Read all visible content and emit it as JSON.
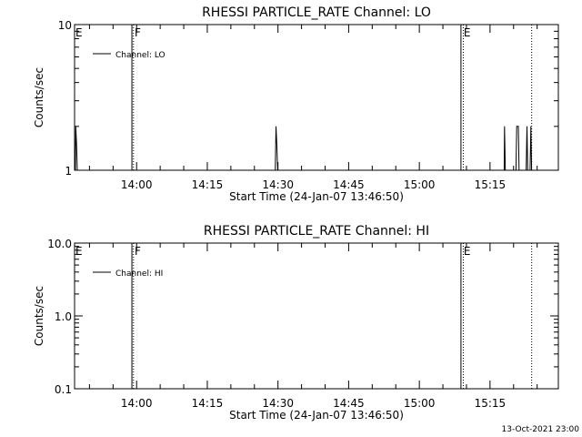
{
  "timestamp": "13-Oct-2021 23:00",
  "chart_data": [
    {
      "type": "line",
      "title": "RHESSI PARTICLE_RATE Channel: LO",
      "xlabel": "Start Time (24-Jan-07 13:46:50)",
      "ylabel": "Counts/sec",
      "y_scale": "log",
      "ylim": [
        1,
        10
      ],
      "y_ticks": [
        {
          "value": 1,
          "label": "1"
        },
        {
          "value": 10,
          "label": "10"
        }
      ],
      "y_minor_ticks": [
        2,
        3,
        4,
        5,
        6,
        7,
        8,
        9
      ],
      "x_range": [
        "13:46:50",
        "15:29:30"
      ],
      "x_ticks": [
        "14:00",
        "14:15",
        "14:30",
        "14:45",
        "15:00",
        "15:15"
      ],
      "legend": {
        "position": "top-left",
        "entries": [
          "Channel: LO"
        ]
      },
      "event_lines": [
        {
          "time": "13:59:00",
          "label": "F",
          "style": "solid"
        },
        {
          "time": "13:59:20",
          "label": "",
          "style": "dotted"
        },
        {
          "time": "15:08:50",
          "label": "E",
          "style": "solid"
        },
        {
          "time": "15:09:20",
          "label": "",
          "style": "dotted"
        },
        {
          "time": "15:23:50",
          "label": "",
          "style": "dotted"
        }
      ],
      "edge_labels": [
        {
          "time": "13:46:50",
          "label": "E"
        }
      ],
      "series": [
        {
          "name": "Channel: LO",
          "points": [
            [
              "13:47:00",
              1
            ],
            [
              "13:47:05",
              2
            ],
            [
              "13:47:15",
              1.5
            ],
            [
              "13:47:25",
              1
            ],
            [
              "14:29:25",
              1
            ],
            [
              "14:29:35",
              2
            ],
            [
              "14:29:45",
              1.5
            ],
            [
              "14:29:55",
              1
            ],
            [
              "15:18:00",
              1
            ],
            [
              "15:18:05",
              2
            ],
            [
              "15:18:15",
              1
            ],
            [
              "15:20:30",
              1
            ],
            [
              "15:20:40",
              2
            ],
            [
              "15:21:00",
              2
            ],
            [
              "15:21:10",
              1
            ],
            [
              "15:22:40",
              1
            ],
            [
              "15:22:50",
              2
            ],
            [
              "15:23:00",
              1
            ],
            [
              "15:23:30",
              1
            ],
            [
              "15:23:40",
              2
            ],
            [
              "15:23:50",
              1
            ]
          ]
        }
      ]
    },
    {
      "type": "line",
      "title": "RHESSI PARTICLE_RATE Channel: HI",
      "xlabel": "Start Time (24-Jan-07 13:46:50)",
      "ylabel": "Counts/sec",
      "y_scale": "log",
      "ylim": [
        0.1,
        10
      ],
      "y_ticks": [
        {
          "value": 0.1,
          "label": "0.1"
        },
        {
          "value": 1,
          "label": "1.0"
        },
        {
          "value": 10,
          "label": "10.0"
        }
      ],
      "y_minor_ticks": [
        0.2,
        0.3,
        0.4,
        0.5,
        0.6,
        0.7,
        0.8,
        0.9,
        2,
        3,
        4,
        5,
        6,
        7,
        8,
        9
      ],
      "x_range": [
        "13:46:50",
        "15:29:30"
      ],
      "x_ticks": [
        "14:00",
        "14:15",
        "14:30",
        "14:45",
        "15:00",
        "15:15"
      ],
      "legend": {
        "position": "top-left",
        "entries": [
          "Channel: HI"
        ]
      },
      "event_lines": [
        {
          "time": "13:59:00",
          "label": "F",
          "style": "solid"
        },
        {
          "time": "13:59:20",
          "label": "",
          "style": "dotted"
        },
        {
          "time": "15:08:50",
          "label": "E",
          "style": "solid"
        },
        {
          "time": "15:09:20",
          "label": "",
          "style": "dotted"
        },
        {
          "time": "15:23:50",
          "label": "",
          "style": "dotted"
        }
      ],
      "edge_labels": [
        {
          "time": "13:46:50",
          "label": "E"
        }
      ],
      "series": [
        {
          "name": "Channel: HI",
          "points": []
        }
      ]
    }
  ]
}
